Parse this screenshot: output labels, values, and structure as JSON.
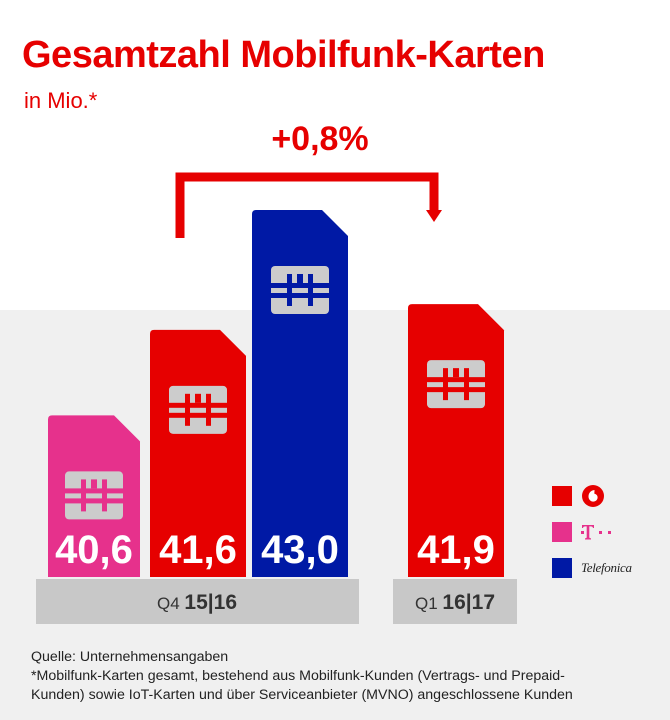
{
  "title": "Gesamtzahl Mobilfunk-Karten",
  "subtitle": "in Mio.*",
  "growth_label": "+0,8%",
  "colors": {
    "vodafone": "#e60000",
    "telekom": "#e6318c",
    "telefonica": "#0019a5",
    "sim_icon": "#cccccc",
    "background_bottom": "#f0f0f0",
    "category_band": "#c8c8c8"
  },
  "chart_data": {
    "type": "bar",
    "unit": "Mio.",
    "categories": [
      "Q4 15|16",
      "Q1 16|17"
    ],
    "bars": [
      {
        "category": "Q4 15|16",
        "series": "Telekom",
        "value": 40.6,
        "label": "40,6"
      },
      {
        "category": "Q4 15|16",
        "series": "Vodafone",
        "value": 41.6,
        "label": "41,6"
      },
      {
        "category": "Q4 15|16",
        "series": "Telefónica",
        "value": 43.0,
        "label": "43,0"
      },
      {
        "category": "Q1 16|17",
        "series": "Vodafone",
        "value": 41.9,
        "label": "41,9"
      }
    ],
    "annotation": "+0,8%",
    "legend_position": "right",
    "legend": [
      {
        "series": "Vodafone",
        "color": "#e60000",
        "icon": "vodafone-logo-icon"
      },
      {
        "series": "Telekom",
        "color": "#e6318c",
        "icon": "telekom-logo-icon"
      },
      {
        "series": "Telefónica",
        "color": "#0019a5",
        "icon": "telefonica-logo-icon",
        "text": "Telefonica"
      }
    ]
  },
  "axis": {
    "q4_prefix": "Q4 ",
    "q4_bold": "15|16",
    "q1_prefix": "Q1 ",
    "q1_bold": "16|17"
  },
  "footer": {
    "source": "Quelle: Unternehmensangaben",
    "note_line1": "*Mobilfunk-Karten gesamt, bestehend aus Mobilfunk-Kunden (Vertrags- und Prepaid-",
    "note_line2": "Kunden) sowie IoT-Karten und über Serviceanbieter (MVNO) angeschlossene Kunden"
  }
}
